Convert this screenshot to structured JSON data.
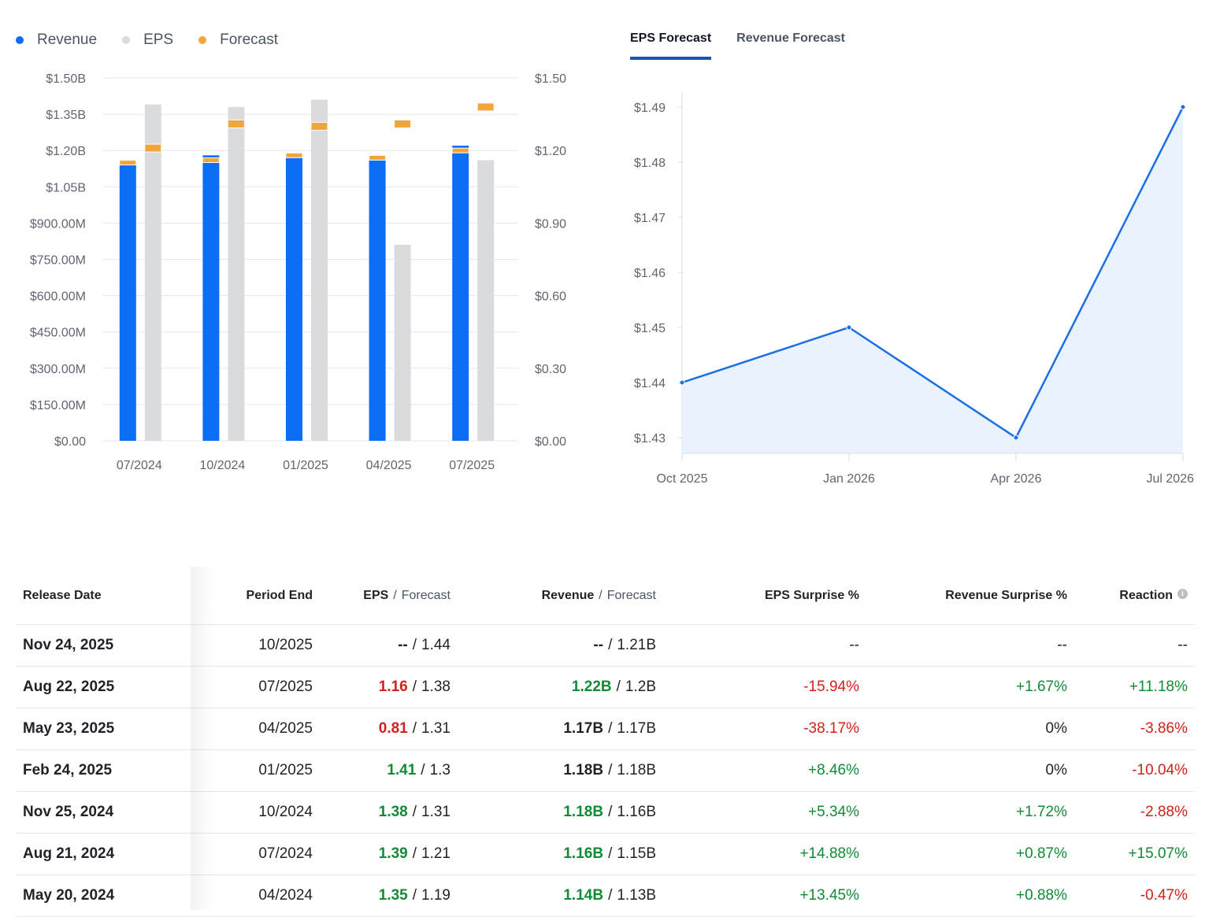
{
  "colors": {
    "revenue": "#0b6ef5",
    "eps": "#dadbdf",
    "forecast": "#f2a53a",
    "line": "#1a6fe6",
    "area": "#eaf3fd",
    "grid": "#e5e7eb",
    "positive": "#128a36",
    "negative": "#d1221b"
  },
  "legend": [
    {
      "label": "Revenue",
      "color": "#0b6ef5"
    },
    {
      "label": "EPS",
      "color": "#dadbdf"
    },
    {
      "label": "Forecast",
      "color": "#f2a53a"
    }
  ],
  "tabs": [
    {
      "label": "EPS Forecast",
      "active": true
    },
    {
      "label": "Revenue Forecast",
      "active": false
    }
  ],
  "chart_data": [
    {
      "type": "bar",
      "categories": [
        "07/2024",
        "10/2024",
        "01/2025",
        "04/2025",
        "07/2025"
      ],
      "left_axis": {
        "ticks": [
          "$0.00",
          "$150.00M",
          "$300.00M",
          "$450.00M",
          "$600.00M",
          "$750.00M",
          "$900.00M",
          "$1.05B",
          "$1.20B",
          "$1.35B",
          "$1.50B"
        ],
        "range": [
          0,
          1.5
        ]
      },
      "right_axis": {
        "ticks": [
          "$0.00",
          "$0.30",
          "$0.60",
          "$0.90",
          "$1.20",
          "$1.50"
        ],
        "range": [
          0,
          1.5
        ]
      },
      "series": [
        {
          "name": "Revenue",
          "values": [
            1.16,
            1.18,
            1.18,
            1.17,
            1.22
          ],
          "unit": "B"
        },
        {
          "name": "Revenue Forecast",
          "values": [
            1.15,
            1.16,
            1.18,
            1.17,
            1.2
          ],
          "unit": "B"
        },
        {
          "name": "EPS",
          "values": [
            1.39,
            1.38,
            1.41,
            0.81,
            1.16
          ]
        },
        {
          "name": "EPS Forecast",
          "values": [
            1.21,
            1.31,
            1.3,
            1.31,
            1.38
          ]
        }
      ],
      "grid": true,
      "legend": "top-left"
    },
    {
      "type": "area",
      "x": [
        "Oct 2025",
        "Jan 2026",
        "Apr 2026",
        "Jul 2026"
      ],
      "values": [
        1.44,
        1.45,
        1.43,
        1.49
      ],
      "y_ticks": [
        "$1.43",
        "$1.44",
        "$1.45",
        "$1.46",
        "$1.47",
        "$1.48",
        "$1.49"
      ],
      "ylim": [
        1.43,
        1.49
      ],
      "grid": false
    }
  ],
  "table": {
    "headers": {
      "release_date": "Release Date",
      "period_end": "Period End",
      "eps": "EPS",
      "revenue": "Revenue",
      "forecast": "Forecast",
      "slash": "/",
      "eps_surprise": "EPS Surprise %",
      "revenue_surprise": "Revenue Surprise %",
      "reaction": "Reaction",
      "info_glyph": "i"
    },
    "rows": [
      {
        "date": "Nov 24, 2025",
        "period": "10/2025",
        "eps": "--",
        "eps_state": "neu",
        "eps_fc": "1.44",
        "rev": "--",
        "rev_state": "neu",
        "rev_fc": "1.21B",
        "eps_surprise": "--",
        "eps_surprise_state": "neu",
        "rev_surprise": "--",
        "rev_surprise_state": "neu",
        "reaction": "--",
        "reaction_state": "neu"
      },
      {
        "date": "Aug 22, 2025",
        "period": "07/2025",
        "eps": "1.16",
        "eps_state": "neg",
        "eps_fc": "1.38",
        "rev": "1.22B",
        "rev_state": "pos",
        "rev_fc": "1.2B",
        "eps_surprise": "-15.94%",
        "eps_surprise_state": "neg",
        "rev_surprise": "+1.67%",
        "rev_surprise_state": "pos",
        "reaction": "+11.18%",
        "reaction_state": "pos"
      },
      {
        "date": "May 23, 2025",
        "period": "04/2025",
        "eps": "0.81",
        "eps_state": "neg",
        "eps_fc": "1.31",
        "rev": "1.17B",
        "rev_state": "neu",
        "rev_fc": "1.17B",
        "eps_surprise": "-38.17%",
        "eps_surprise_state": "neg",
        "rev_surprise": "0%",
        "rev_surprise_state": "neu",
        "reaction": "-3.86%",
        "reaction_state": "neg"
      },
      {
        "date": "Feb 24, 2025",
        "period": "01/2025",
        "eps": "1.41",
        "eps_state": "pos",
        "eps_fc": "1.3",
        "rev": "1.18B",
        "rev_state": "neu",
        "rev_fc": "1.18B",
        "eps_surprise": "+8.46%",
        "eps_surprise_state": "pos",
        "rev_surprise": "0%",
        "rev_surprise_state": "neu",
        "reaction": "-10.04%",
        "reaction_state": "neg"
      },
      {
        "date": "Nov 25, 2024",
        "period": "10/2024",
        "eps": "1.38",
        "eps_state": "pos",
        "eps_fc": "1.31",
        "rev": "1.18B",
        "rev_state": "pos",
        "rev_fc": "1.16B",
        "eps_surprise": "+5.34%",
        "eps_surprise_state": "pos",
        "rev_surprise": "+1.72%",
        "rev_surprise_state": "pos",
        "reaction": "-2.88%",
        "reaction_state": "neg"
      },
      {
        "date": "Aug 21, 2024",
        "period": "07/2024",
        "eps": "1.39",
        "eps_state": "pos",
        "eps_fc": "1.21",
        "rev": "1.16B",
        "rev_state": "pos",
        "rev_fc": "1.15B",
        "eps_surprise": "+14.88%",
        "eps_surprise_state": "pos",
        "rev_surprise": "+0.87%",
        "rev_surprise_state": "pos",
        "reaction": "+15.07%",
        "reaction_state": "pos"
      },
      {
        "date": "May 20, 2024",
        "period": "04/2024",
        "eps": "1.35",
        "eps_state": "pos",
        "eps_fc": "1.19",
        "rev": "1.14B",
        "rev_state": "pos",
        "rev_fc": "1.13B",
        "eps_surprise": "+13.45%",
        "eps_surprise_state": "pos",
        "rev_surprise": "+0.88%",
        "rev_surprise_state": "pos",
        "reaction": "-0.47%",
        "reaction_state": "neg"
      }
    ]
  }
}
